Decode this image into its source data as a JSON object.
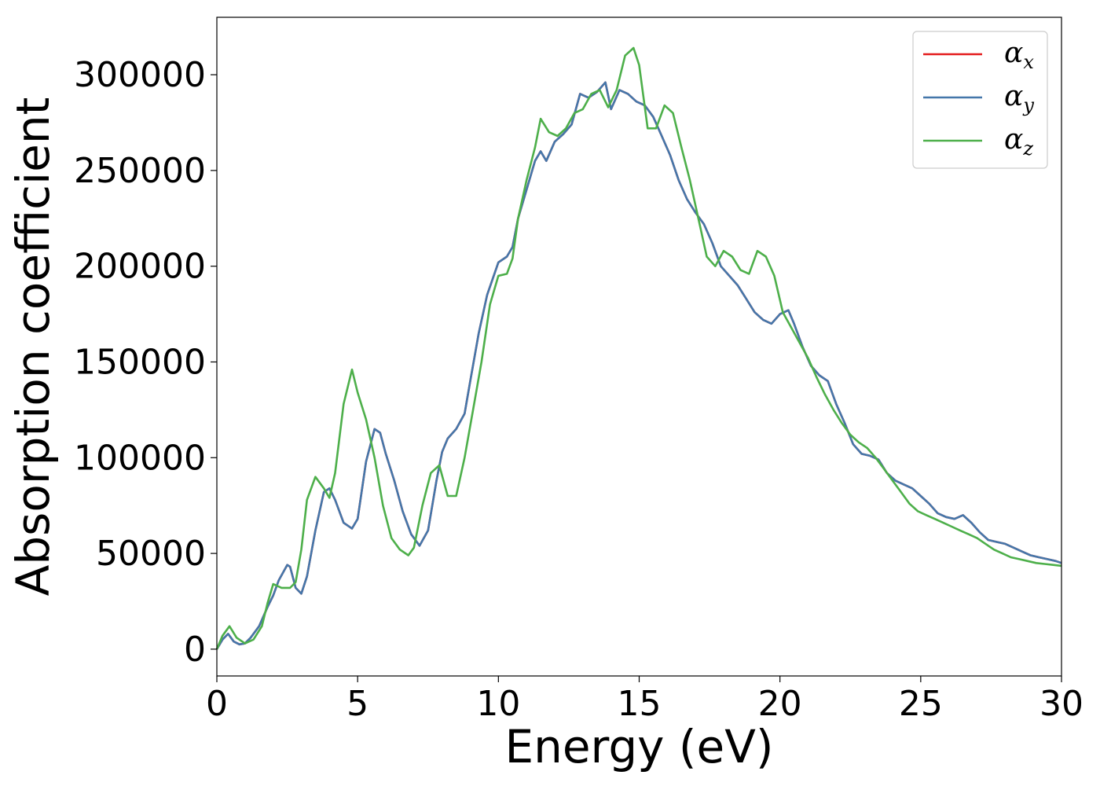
{
  "chart_data": {
    "type": "line",
    "title": "",
    "xlabel": "Energy (eV)",
    "ylabel": "Absorption coefficient",
    "xlim": [
      0,
      30
    ],
    "ylim": [
      -14000,
      330000
    ],
    "xticks": [
      0,
      5,
      10,
      15,
      20,
      25,
      30
    ],
    "yticks": [
      0,
      50000,
      100000,
      150000,
      200000,
      250000,
      300000
    ],
    "grid": false,
    "legend_position": "top-right",
    "series": [
      {
        "name": "αx",
        "symbol": "α",
        "subscript": "x",
        "color": "#e41a1c",
        "x": [
          0,
          0.2,
          0.4,
          0.6,
          0.8,
          1.0,
          1.2,
          1.5,
          1.8,
          2.0,
          2.2,
          2.5,
          2.6,
          2.8,
          3.0,
          3.2,
          3.5,
          3.8,
          4.0,
          4.2,
          4.5,
          4.8,
          5.0,
          5.3,
          5.6,
          5.8,
          6.0,
          6.3,
          6.6,
          6.9,
          7.2,
          7.5,
          7.8,
          8.0,
          8.2,
          8.5,
          8.8,
          9.0,
          9.3,
          9.6,
          10.0,
          10.3,
          10.5,
          10.7,
          11.0,
          11.3,
          11.5,
          11.7,
          12.0,
          12.3,
          12.6,
          12.9,
          13.2,
          13.5,
          13.8,
          14.0,
          14.3,
          14.6,
          14.9,
          15.2,
          15.5,
          15.8,
          16.1,
          16.4,
          16.7,
          17.0,
          17.3,
          17.6,
          17.9,
          18.2,
          18.5,
          18.8,
          19.1,
          19.4,
          19.7,
          20.0,
          20.3,
          20.5,
          20.8,
          21.1,
          21.4,
          21.7,
          22.0,
          22.3,
          22.6,
          22.9,
          23.2,
          23.5,
          23.8,
          24.1,
          24.4,
          24.7,
          25.0,
          25.3,
          25.6,
          25.9,
          26.2,
          26.5,
          26.8,
          27.1,
          27.4,
          27.7,
          28.0,
          28.3,
          28.6,
          28.9,
          29.2,
          29.5,
          29.8,
          30.0
        ],
        "values": [
          0,
          5000,
          8000,
          4000,
          2500,
          3000,
          6000,
          12000,
          22000,
          28000,
          36000,
          44000,
          43000,
          32000,
          29000,
          38000,
          62000,
          82000,
          84000,
          78000,
          66000,
          63000,
          68000,
          98000,
          115000,
          113000,
          102000,
          88000,
          72000,
          60000,
          54000,
          62000,
          88000,
          103000,
          110000,
          115000,
          123000,
          140000,
          165000,
          185000,
          202000,
          205000,
          210000,
          225000,
          240000,
          255000,
          260000,
          255000,
          265000,
          269000,
          274000,
          290000,
          288000,
          291000,
          296000,
          282000,
          292000,
          290000,
          286000,
          284000,
          278000,
          268000,
          258000,
          245000,
          235000,
          228000,
          222000,
          212000,
          200000,
          195000,
          190000,
          183000,
          176000,
          172000,
          170000,
          175000,
          177000,
          170000,
          158000,
          148000,
          143000,
          140000,
          128000,
          118000,
          107000,
          102000,
          101000,
          99000,
          92000,
          88000,
          86000,
          84000,
          80000,
          76000,
          71000,
          69000,
          68000,
          70000,
          66000,
          61000,
          57000,
          56000,
          55000,
          53000,
          51000,
          49000,
          48000,
          47000,
          46000,
          45000
        ],
        "note": ""
      },
      {
        "name": "αy",
        "symbol": "α",
        "subscript": "y",
        "color": "#4477aa",
        "x": [
          0,
          0.2,
          0.4,
          0.6,
          0.8,
          1.0,
          1.2,
          1.5,
          1.8,
          2.0,
          2.2,
          2.5,
          2.6,
          2.8,
          3.0,
          3.2,
          3.5,
          3.8,
          4.0,
          4.2,
          4.5,
          4.8,
          5.0,
          5.3,
          5.6,
          5.8,
          6.0,
          6.3,
          6.6,
          6.9,
          7.2,
          7.5,
          7.8,
          8.0,
          8.2,
          8.5,
          8.8,
          9.0,
          9.3,
          9.6,
          10.0,
          10.3,
          10.5,
          10.7,
          11.0,
          11.3,
          11.5,
          11.7,
          12.0,
          12.3,
          12.6,
          12.9,
          13.2,
          13.5,
          13.8,
          14.0,
          14.3,
          14.6,
          14.9,
          15.2,
          15.5,
          15.8,
          16.1,
          16.4,
          16.7,
          17.0,
          17.3,
          17.6,
          17.9,
          18.2,
          18.5,
          18.8,
          19.1,
          19.4,
          19.7,
          20.0,
          20.3,
          20.5,
          20.8,
          21.1,
          21.4,
          21.7,
          22.0,
          22.3,
          22.6,
          22.9,
          23.2,
          23.5,
          23.8,
          24.1,
          24.4,
          24.7,
          25.0,
          25.3,
          25.6,
          25.9,
          26.2,
          26.5,
          26.8,
          27.1,
          27.4,
          27.7,
          28.0,
          28.3,
          28.6,
          28.9,
          29.2,
          29.5,
          29.8,
          30.0
        ],
        "values": [
          0,
          5000,
          8000,
          4000,
          2500,
          3000,
          6000,
          12000,
          22000,
          28000,
          36000,
          44000,
          43000,
          32000,
          29000,
          38000,
          62000,
          82000,
          84000,
          78000,
          66000,
          63000,
          68000,
          98000,
          115000,
          113000,
          102000,
          88000,
          72000,
          60000,
          54000,
          62000,
          88000,
          103000,
          110000,
          115000,
          123000,
          140000,
          165000,
          185000,
          202000,
          205000,
          210000,
          225000,
          240000,
          255000,
          260000,
          255000,
          265000,
          269000,
          274000,
          290000,
          288000,
          291000,
          296000,
          282000,
          292000,
          290000,
          286000,
          284000,
          278000,
          268000,
          258000,
          245000,
          235000,
          228000,
          222000,
          212000,
          200000,
          195000,
          190000,
          183000,
          176000,
          172000,
          170000,
          175000,
          177000,
          170000,
          158000,
          148000,
          143000,
          140000,
          128000,
          118000,
          107000,
          102000,
          101000,
          99000,
          92000,
          88000,
          86000,
          84000,
          80000,
          76000,
          71000,
          69000,
          68000,
          70000,
          66000,
          61000,
          57000,
          56000,
          55000,
          53000,
          51000,
          49000,
          48000,
          47000,
          46000,
          45000
        ]
      },
      {
        "name": "αz",
        "symbol": "α",
        "subscript": "z",
        "color": "#4daf4a",
        "x": [
          0,
          0.2,
          0.45,
          0.7,
          1.0,
          1.3,
          1.6,
          1.8,
          2.0,
          2.3,
          2.6,
          2.8,
          3.0,
          3.2,
          3.5,
          3.8,
          4.0,
          4.2,
          4.5,
          4.8,
          5.0,
          5.3,
          5.6,
          5.9,
          6.2,
          6.5,
          6.8,
          7.0,
          7.3,
          7.6,
          7.9,
          8.2,
          8.5,
          8.8,
          9.1,
          9.4,
          9.7,
          10.0,
          10.3,
          10.5,
          10.7,
          11.0,
          11.3,
          11.5,
          11.8,
          12.1,
          12.4,
          12.7,
          13.0,
          13.3,
          13.6,
          13.9,
          14.2,
          14.5,
          14.8,
          15.0,
          15.3,
          15.6,
          15.9,
          16.2,
          16.5,
          16.8,
          17.1,
          17.4,
          17.7,
          18.0,
          18.3,
          18.6,
          18.9,
          19.2,
          19.5,
          19.8,
          20.1,
          20.4,
          20.7,
          21.0,
          21.3,
          21.6,
          21.9,
          22.2,
          22.5,
          22.8,
          23.1,
          23.4,
          23.7,
          24.0,
          24.3,
          24.6,
          24.9,
          25.2,
          25.5,
          25.8,
          26.1,
          26.4,
          26.7,
          27.0,
          27.3,
          27.6,
          27.9,
          28.2,
          28.5,
          28.8,
          29.1,
          29.4,
          29.7,
          30.0
        ],
        "values": [
          0,
          7000,
          12000,
          6000,
          3000,
          5000,
          12000,
          24000,
          34000,
          32000,
          32000,
          35000,
          52000,
          78000,
          90000,
          84000,
          79000,
          92000,
          128000,
          146000,
          134000,
          120000,
          100000,
          75000,
          58000,
          52000,
          49000,
          53000,
          75000,
          92000,
          96000,
          80000,
          80000,
          100000,
          125000,
          150000,
          180000,
          195000,
          196000,
          204000,
          225000,
          245000,
          262000,
          277000,
          270000,
          268000,
          272000,
          280000,
          282000,
          290000,
          292000,
          283000,
          292000,
          310000,
          314000,
          305000,
          272000,
          272000,
          284000,
          280000,
          262000,
          245000,
          225000,
          205000,
          200000,
          208000,
          205000,
          198000,
          196000,
          208000,
          205000,
          195000,
          176000,
          168000,
          160000,
          152000,
          142000,
          133000,
          125000,
          118000,
          112000,
          108000,
          105000,
          100000,
          94000,
          88000,
          82000,
          76000,
          72000,
          70000,
          68000,
          66000,
          64000,
          62000,
          60000,
          58000,
          55000,
          52000,
          50000,
          48000,
          47000,
          46000,
          45000,
          44500,
          44000,
          43500
        ]
      }
    ]
  }
}
